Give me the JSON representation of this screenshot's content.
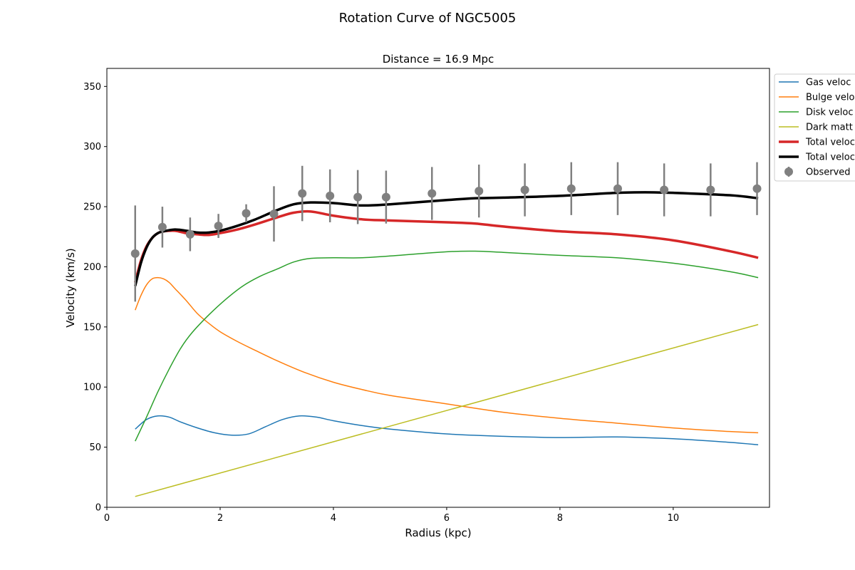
{
  "chart_data": {
    "type": "line",
    "title": "Rotation Curve of NGC5005",
    "subtitle": "Distance = 16.9 Mpc",
    "xlabel": "Radius (kpc)",
    "ylabel": "Velocity (km/s)",
    "xlim": [
      0,
      11.7
    ],
    "ylim": [
      0,
      365
    ],
    "xticks": [
      0,
      2,
      4,
      6,
      8,
      10
    ],
    "yticks": [
      0,
      50,
      100,
      150,
      200,
      250,
      300,
      350
    ],
    "grid": false,
    "legend_placement": "top-right, outside axes (clipped)",
    "series": [
      {
        "name": "Gas veloc",
        "color": "#1f77b4",
        "width": 1.5,
        "x": [
          0.5,
          0.7,
          0.9,
          1.1,
          1.3,
          1.6,
          1.9,
          2.2,
          2.5,
          2.8,
          3.1,
          3.4,
          3.7,
          4.0,
          4.5,
          5.0,
          6.0,
          7.0,
          8.0,
          9.0,
          10.0,
          11.0,
          11.5
        ],
        "y": [
          65,
          73,
          76,
          75,
          71,
          66,
          62,
          60,
          61,
          67,
          73,
          76,
          75,
          72,
          68,
          65,
          61,
          59,
          58,
          58.5,
          57,
          54,
          52
        ]
      },
      {
        "name": "Bulge veloc",
        "color": "#ff7f0e",
        "width": 1.5,
        "x": [
          0.5,
          0.6,
          0.7,
          0.8,
          0.9,
          1.0,
          1.1,
          1.2,
          1.4,
          1.6,
          1.8,
          2.0,
          2.3,
          2.6,
          3.0,
          3.5,
          4.0,
          4.5,
          5.0,
          6.0,
          7.0,
          8.0,
          9.0,
          10.0,
          11.0,
          11.5
        ],
        "y": [
          164,
          176,
          185,
          190,
          191,
          190,
          187,
          182,
          172,
          161,
          153,
          146,
          138,
          131,
          122,
          112,
          104,
          98,
          93,
          86,
          79,
          74,
          70,
          66,
          63,
          62
        ]
      },
      {
        "name": "Disk veloc",
        "color": "#2ca02c",
        "width": 1.5,
        "x": [
          0.5,
          0.7,
          0.9,
          1.1,
          1.3,
          1.5,
          1.8,
          2.1,
          2.4,
          2.7,
          3.0,
          3.3,
          3.6,
          4.0,
          4.5,
          5.0,
          6.0,
          6.5,
          7.0,
          8.0,
          9.0,
          10.0,
          11.0,
          11.5
        ],
        "y": [
          55,
          75,
          96,
          115,
          132,
          145,
          160,
          173,
          184,
          192,
          198,
          204,
          207,
          207.5,
          207.5,
          209,
          212.5,
          213,
          212,
          209.5,
          207.5,
          203,
          196,
          191
        ]
      },
      {
        "name": "Dark matt",
        "color": "#bcbd22",
        "width": 1.5,
        "x": [
          0.5,
          11.5
        ],
        "y": [
          9,
          152
        ]
      },
      {
        "name": "Total veloc",
        "color": "#d62728",
        "width": 3.5,
        "x": [
          0.5,
          0.6,
          0.7,
          0.8,
          0.9,
          1.0,
          1.2,
          1.4,
          1.6,
          1.8,
          2.0,
          2.3,
          2.6,
          3.0,
          3.3,
          3.6,
          4.0,
          4.5,
          5.0,
          6.0,
          6.5,
          7.0,
          8.0,
          9.0,
          10.0,
          11.0,
          11.5
        ],
        "y": [
          187,
          205,
          217,
          224,
          228,
          229.5,
          230,
          228,
          227,
          226.5,
          228,
          231,
          235,
          241,
          245,
          246,
          242.5,
          239.5,
          238.5,
          237,
          236,
          233.5,
          229.5,
          227,
          222,
          213,
          207.5
        ]
      },
      {
        "name": "Total veloc",
        "color": "#000000",
        "width": 3.5,
        "x": [
          0.5,
          0.6,
          0.7,
          0.8,
          0.9,
          1.0,
          1.2,
          1.4,
          1.6,
          1.8,
          2.0,
          2.3,
          2.6,
          3.0,
          3.3,
          3.6,
          4.0,
          4.5,
          5.0,
          6.0,
          6.5,
          7.0,
          8.0,
          9.0,
          9.5,
          10.0,
          11.0,
          11.5
        ],
        "y": [
          184,
          203,
          216,
          224,
          228,
          229.5,
          231,
          230,
          228.5,
          228.5,
          230,
          234,
          239,
          247,
          252,
          253.5,
          253,
          251,
          252,
          255.5,
          257,
          257.5,
          259,
          261.5,
          262,
          261.5,
          259.5,
          257
        ]
      }
    ],
    "observed": {
      "name": "Observed",
      "color": "#808080",
      "x": [
        0.5,
        0.98,
        1.47,
        1.97,
        2.46,
        2.95,
        3.45,
        3.94,
        4.43,
        4.93,
        5.74,
        6.57,
        7.38,
        8.2,
        9.02,
        9.84,
        10.66,
        11.48
      ],
      "y": [
        211,
        233,
        227,
        234,
        244.5,
        244,
        261,
        259,
        258,
        258,
        261,
        263,
        264,
        265,
        265,
        264,
        264,
        265
      ],
      "err": [
        40,
        17,
        14,
        10,
        7.5,
        23,
        23,
        22,
        22.5,
        22,
        22,
        22,
        22,
        22,
        22,
        22,
        22,
        22
      ]
    }
  }
}
